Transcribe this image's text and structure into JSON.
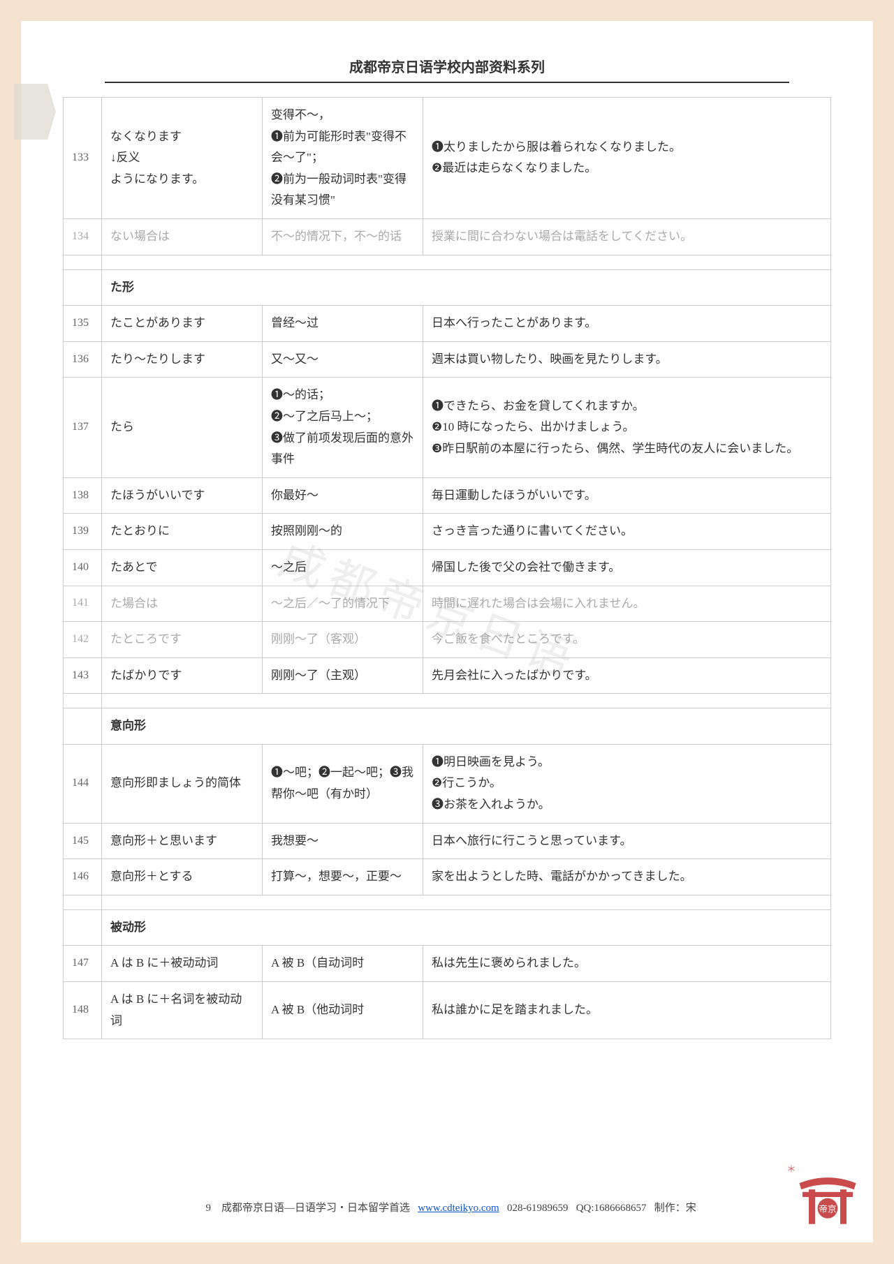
{
  "header": {
    "title": "成都帝京日语学校内部资料系列"
  },
  "watermark": "成都帝京日语",
  "sections": [
    {
      "rows": [
        {
          "num": "133",
          "b": "なくなります\n↓反义\nようになります。",
          "c": "变得不～，\n❶前为可能形时表\"变得不会～了\"；\n❷前为一般动词时表\"变得没有某习惯\"",
          "d": "❶太りましたから服は着られなくなりました。\n❷最近は走らなくなりました。",
          "faded": false
        },
        {
          "num": "134",
          "b": "ない場合は",
          "c": "不～的情况下，不～的话",
          "d": "授業に間に合わない場合は電話をしてください。",
          "faded": true
        }
      ]
    },
    {
      "title": "た形",
      "rows": [
        {
          "num": "135",
          "b": "たことがあります",
          "c": "曾经～过",
          "d": "日本へ行ったことがあります。",
          "faded": false
        },
        {
          "num": "136",
          "b": "たり～たりします",
          "c": "又～又～",
          "d": "週末は買い物したり、映画を見たりします。",
          "faded": false
        },
        {
          "num": "137",
          "b": "たら",
          "c": "❶～的话；\n❷～了之后马上～；\n❸做了前项发现后面的意外事件",
          "d": "❶できたら、お金を貸してくれますか。\n❷10 時になったら、出かけましょう。\n❸昨日駅前の本屋に行ったら、偶然、学生時代の友人に会いました。",
          "faded": false
        },
        {
          "num": "138",
          "b": "たほうがいいです",
          "c": "你最好～",
          "d": "毎日運動したほうがいいです。",
          "faded": false
        },
        {
          "num": "139",
          "b": "たとおりに",
          "c": "按照刚刚～的",
          "d": "さっき言った通りに書いてください。",
          "faded": false
        },
        {
          "num": "140",
          "b": "たあとで",
          "c": "～之后",
          "d": "帰国した後で父の会社で働きます。",
          "faded": false
        },
        {
          "num": "141",
          "b": "た場合は",
          "c": "～之后／～了的情况下",
          "d": "時間に遅れた場合は会場に入れません。",
          "faded": true
        },
        {
          "num": "142",
          "b": "たところです",
          "c": "刚刚～了（客观）",
          "d": "今ご飯を食べたところです。",
          "faded": true
        },
        {
          "num": "143",
          "b": "たばかりです",
          "c": "刚刚～了（主观）",
          "d": "先月会社に入ったばかりです。",
          "faded": false
        }
      ]
    },
    {
      "title": "意向形",
      "rows": [
        {
          "num": "144",
          "b": "意向形即ましょう的简体",
          "c": "❶～吧；❷一起～吧；❸我帮你～吧（有か时）",
          "d": "❶明日映画を見よう。\n❷行こうか。\n❸お茶を入れようか。",
          "faded": false
        },
        {
          "num": "145",
          "b": "意向形＋と思います",
          "c": "我想要～",
          "d": "日本へ旅行に行こうと思っています。",
          "faded": false
        },
        {
          "num": "146",
          "b": "意向形＋とする",
          "c": "打算～，想要～，正要～",
          "d": "家を出ようとした時、電話がかかってきました。",
          "faded": false
        }
      ]
    },
    {
      "title": "被动形",
      "rows": [
        {
          "num": "147",
          "b": "A は B に＋被动动词",
          "c": "A 被 B（自动词时",
          "d": "私は先生に褒められました。",
          "faded": false
        },
        {
          "num": "148",
          "b": "A は B に＋名词を被动动词",
          "c": "A 被 B（他动词时",
          "d": "私は誰かに足を踏まれました。",
          "faded": false
        }
      ]
    }
  ],
  "footer": {
    "page": "9",
    "org": "成都帝京日语—日语学习・日本留学首选",
    "url_text": "www.cdteikyo.com",
    "phone": "028-61989659",
    "qq": "QQ:1686668657",
    "author": "制作：宋"
  }
}
